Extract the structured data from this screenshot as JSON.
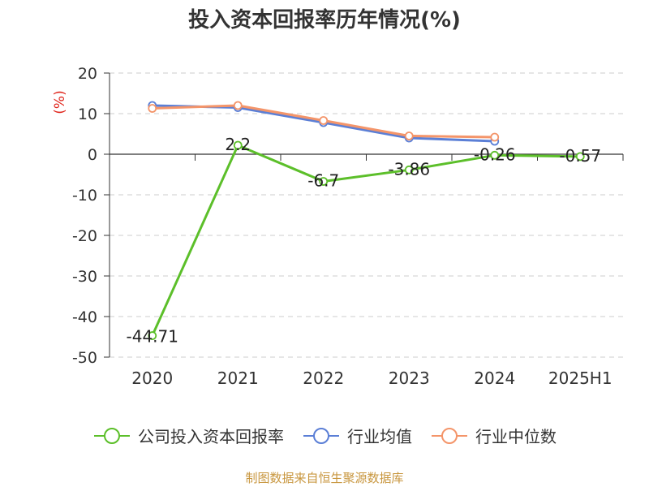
{
  "title": "投入资本回报率历年情况(%)",
  "source_note": "制图数据来自恒生聚源数据库",
  "colors": {
    "company": "#5cbf2a",
    "industry_avg": "#5b7fd6",
    "industry_median": "#f4956a",
    "axis_unit": "#e0271e",
    "grid": "#cccccc",
    "axis": "#333333"
  },
  "chart_data": {
    "type": "line",
    "title": "投入资本回报率历年情况(%)",
    "ylabel": "(%)",
    "xlabel": "",
    "categories": [
      "2020",
      "2021",
      "2022",
      "2023",
      "2024",
      "2025H1"
    ],
    "ylim": [
      -50,
      20
    ],
    "yticks": [
      20,
      10,
      0,
      -10,
      -20,
      -30,
      -40,
      -50
    ],
    "grid": "horizontal-dashed",
    "legend_position": "bottom",
    "series": [
      {
        "name": "公司投入资本回报率",
        "color": "#5cbf2a",
        "values": [
          -44.71,
          2.2,
          -6.7,
          -3.86,
          -0.26,
          -0.57
        ],
        "labels": [
          "-44.71",
          "2.2",
          "-6.7",
          "-3.86",
          "-0.26",
          "-0.57"
        ]
      },
      {
        "name": "行业均值",
        "color": "#5b7fd6",
        "values": [
          12.0,
          11.5,
          7.8,
          4.0,
          3.2,
          null
        ]
      },
      {
        "name": "行业中位数",
        "color": "#f4956a",
        "values": [
          11.3,
          12.0,
          8.3,
          4.5,
          4.2,
          null
        ]
      }
    ]
  }
}
